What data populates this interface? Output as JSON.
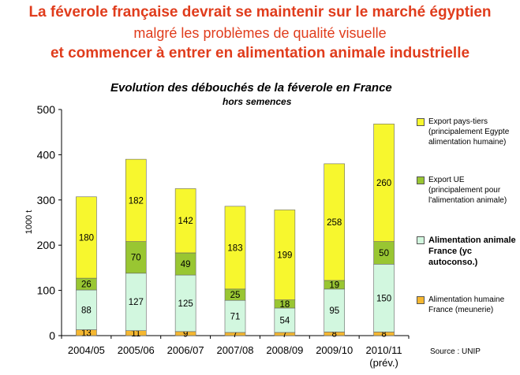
{
  "header": {
    "line1": "La féverole française devrait se maintenir sur le marché égyptien",
    "line2": "malgré les problèmes de qualité visuelle",
    "line3": "et commencer à entrer en alimentation animale industrielle"
  },
  "source": "Source : UNIP",
  "chart_data": {
    "type": "bar",
    "stacked": true,
    "title": "Evolution des débouchés de la féverole en France",
    "subtitle": "hors semences",
    "xlabel": "",
    "ylabel": "1000 t",
    "ylim": [
      0,
      500
    ],
    "yticks": [
      0,
      100,
      200,
      300,
      400,
      500
    ],
    "grid": false,
    "legend_position": "right",
    "categories": [
      [
        "2004/05"
      ],
      [
        "2005/06"
      ],
      [
        "2006/07"
      ],
      [
        "2007/08"
      ],
      [
        "2008/09"
      ],
      [
        "2009/10"
      ],
      [
        "2010/11",
        "(prév.)"
      ]
    ],
    "series": [
      {
        "name": "Alimentation humaine France (meunerie)",
        "color": "#f5b730",
        "values": [
          13,
          11,
          9,
          7,
          7,
          8,
          8
        ],
        "legend_lines": [
          "Alimentation humaine",
          "France (meunerie)"
        ],
        "legend_bold": false
      },
      {
        "name": "Alimentation animale France (yc autoconso.)",
        "color": "#d2f7df",
        "values": [
          88,
          127,
          125,
          71,
          54,
          95,
          150
        ],
        "legend_lines": [
          "Alimentation animale",
          "France (yc",
          "autoconso.)"
        ],
        "legend_bold": true
      },
      {
        "name": "Export UE (principalement pour l'alimentation animale)",
        "color": "#99c632",
        "values": [
          26,
          70,
          49,
          25,
          18,
          19,
          50
        ],
        "legend_lines": [
          "Export UE",
          "(principalement pour",
          "l'alimentation animale)"
        ],
        "legend_bold": false
      },
      {
        "name": "Export pays-tiers (principalement Egypte alimentation humaine)",
        "color": "#f7f72e",
        "values": [
          180,
          182,
          142,
          183,
          199,
          258,
          260
        ],
        "legend_lines": [
          "Export pays-tiers",
          "(principalement Egypte",
          "alimentation humaine)"
        ],
        "legend_bold": false
      }
    ]
  }
}
